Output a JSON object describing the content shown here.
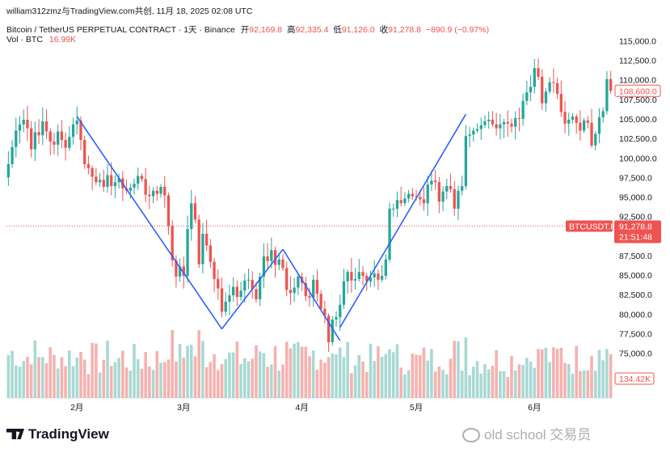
{
  "header": {
    "line1": "william312zmz与TradingView.com共创, 11月 18, 2025 02:08 UTC",
    "symbol": "Bitcoin / TetherUS PERPETUAL CONTRACT · 1天 · Binance",
    "open_label": "开",
    "open": "92,169.8",
    "high_label": "高",
    "high": "92,335.4",
    "low_label": "低",
    "low": "91,126.0",
    "close_label": "收",
    "close": "91,278.8",
    "change": "−890.9 (−0.97%)",
    "vol_label": "Vol · BTC",
    "vol_value": "16.99K"
  },
  "watermarks": {
    "brand": "TradingView",
    "user": "old school 交易员"
  },
  "chart_data": {
    "type": "candlestick",
    "title": "Bitcoin / TetherUS PERPETUAL CONTRACT · 1天 · Binance",
    "y_axis_ticks": [
      "115,000.0",
      "112,500.0",
      "110,000.0",
      "107,500.0",
      "105,000.0",
      "102,500.0",
      "100,000.0",
      "97,500.0",
      "95,000.0",
      "92,500.0",
      "87,500.0",
      "85,000.0",
      "82,500.0",
      "80,000.0",
      "77,500.0",
      "75,000.0"
    ],
    "ylim": [
      70500,
      116500
    ],
    "x_axis_ticks": [
      {
        "label": "2月",
        "index": 18
      },
      {
        "label": "3月",
        "index": 46
      },
      {
        "label": "4月",
        "index": 77
      },
      {
        "label": "5月",
        "index": 107
      },
      {
        "label": "6月",
        "index": 138
      }
    ],
    "labels": {
      "symbol_tag": "BTCUSDT.P",
      "last_price": "91,278.8",
      "countdown": "21:51:48",
      "right_price": "108,600.0",
      "volume_tag": "134.42K"
    },
    "last_price_value": 91278.8,
    "right_price_value": 108600,
    "colors": {
      "up": "#26a69a",
      "down": "#ef5350",
      "trend": "#2962ff",
      "vol_up": "#a8d9d3",
      "vol_down": "#f6b1ae"
    },
    "trend_lines": [
      [
        [
          18,
          105300
        ],
        [
          56,
          78100
        ]
      ],
      [
        [
          56,
          78100
        ],
        [
          72,
          88300
        ]
      ],
      [
        [
          72,
          88300
        ],
        [
          87,
          76600
        ]
      ],
      [
        [
          87,
          78300
        ],
        [
          120,
          105600
        ]
      ]
    ],
    "closes": [
      99200,
      101400,
      103500,
      104300,
      104900,
      103800,
      101100,
      103300,
      102900,
      104700,
      103400,
      102100,
      101700,
      103400,
      102300,
      101300,
      102700,
      104300,
      104800,
      102300,
      99200,
      98700,
      97600,
      96900,
      97200,
      96300,
      97800,
      96400,
      96900,
      97400,
      96100,
      95800,
      96200,
      96700,
      97700,
      97300,
      95300,
      95100,
      95800,
      95400,
      96300,
      95200,
      91300,
      86900,
      84800,
      86100,
      84900,
      90900,
      94200,
      92100,
      86400,
      90300,
      88800,
      86700,
      84500,
      83300,
      80300,
      81600,
      82400,
      83500,
      82200,
      83000,
      84300,
      84400,
      83200,
      81900,
      84800,
      87400,
      86800,
      88200,
      86300,
      87000,
      85900,
      83100,
      82700,
      83400,
      84800,
      84000,
      82300,
      82100,
      84400,
      82600,
      80700,
      79800,
      76400,
      79300,
      79600,
      81200,
      84200,
      85400,
      84300,
      84500,
      85400,
      84900,
      84200,
      84700,
      85200,
      84400,
      84900,
      87000,
      93500,
      93500,
      94600,
      94200,
      94800,
      95400,
      95100,
      95000,
      94700,
      94200,
      96600,
      97100,
      96900,
      94400,
      95700,
      96400,
      96000,
      93500,
      95800,
      96400,
      102800,
      103000,
      103500,
      103700,
      104200,
      104700,
      104900,
      104300,
      103800,
      104300,
      104600,
      104400,
      104000,
      105100,
      105000,
      107300,
      108400,
      109100,
      111500,
      110400,
      107000,
      108500,
      109700,
      109600,
      108200,
      105900,
      104400,
      104900,
      105300,
      104500,
      103500,
      104800,
      104500,
      101600,
      103100,
      105200,
      106000,
      110100,
      108600
    ]
  }
}
